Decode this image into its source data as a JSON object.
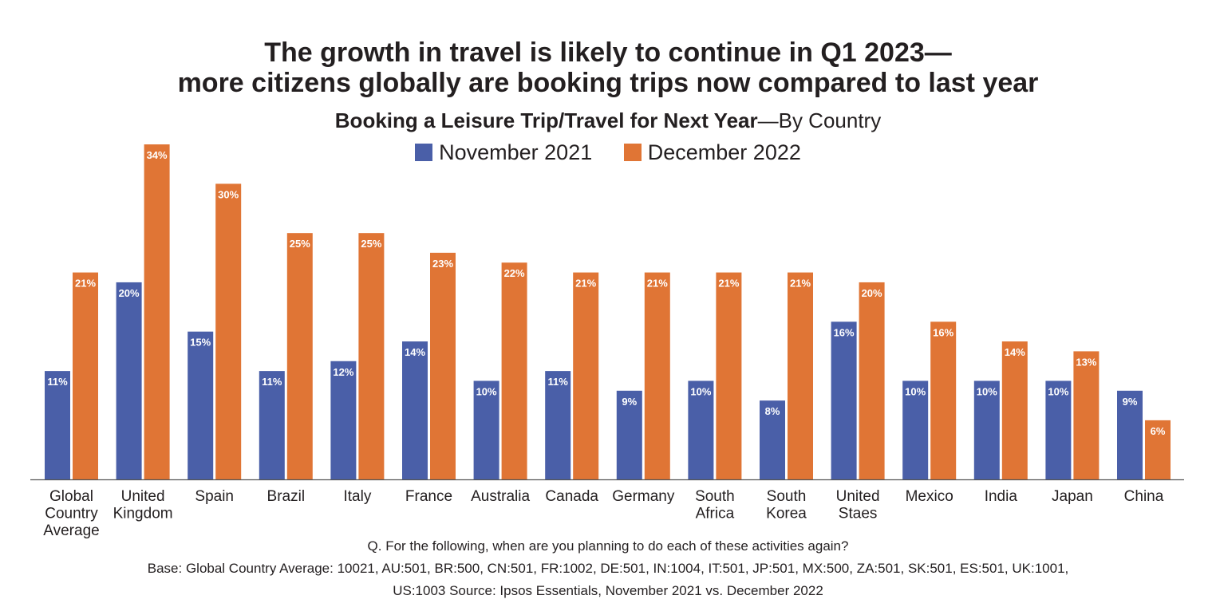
{
  "chart_data": {
    "type": "bar",
    "title": "The growth in travel is likely to continue in Q1 2023—",
    "title_line2": "more citizens globally are booking trips now compared to last year",
    "subtitle_bold": "Booking a Leisure Trip/Travel for Next Year",
    "subtitle_rest": "—By Country",
    "categories": [
      [
        "Global",
        "Country",
        "Average"
      ],
      [
        "United",
        "Kingdom"
      ],
      [
        "Spain"
      ],
      [
        "Brazil"
      ],
      [
        "Italy"
      ],
      [
        "France"
      ],
      [
        "Australia"
      ],
      [
        "Canada"
      ],
      [
        "Germany"
      ],
      [
        "South",
        "Africa"
      ],
      [
        "South",
        "Korea"
      ],
      [
        "United",
        "Staes"
      ],
      [
        "Mexico"
      ],
      [
        "India"
      ],
      [
        "Japan"
      ],
      [
        "China"
      ]
    ],
    "series": [
      {
        "name": "November 2021",
        "color": "#4a5fa8",
        "values": [
          11,
          20,
          15,
          11,
          12,
          14,
          10,
          11,
          9,
          10,
          8,
          16,
          10,
          10,
          10,
          9
        ]
      },
      {
        "name": "December 2022",
        "color": "#e07535",
        "values": [
          21,
          34,
          30,
          25,
          25,
          23,
          22,
          21,
          21,
          21,
          21,
          20,
          16,
          14,
          13,
          6
        ]
      }
    ],
    "value_suffix": "%",
    "ylim": [
      0,
      34
    ],
    "grid": false,
    "legend_position": "top-center"
  },
  "footer": {
    "question": "Q. For the following, when are you planning to do each of these activities again?",
    "base_line1": "Base: Global Country Average: 10021, AU:501, BR:500, CN:501, FR:1002, DE:501, IN:1004, IT:501, JP:501, MX:500, ZA:501, SK:501, ES:501, UK:1001,",
    "base_line2": "US:1003",
    "source": " Source: Ipsos Essentials, November 2021 vs. December 2022"
  }
}
